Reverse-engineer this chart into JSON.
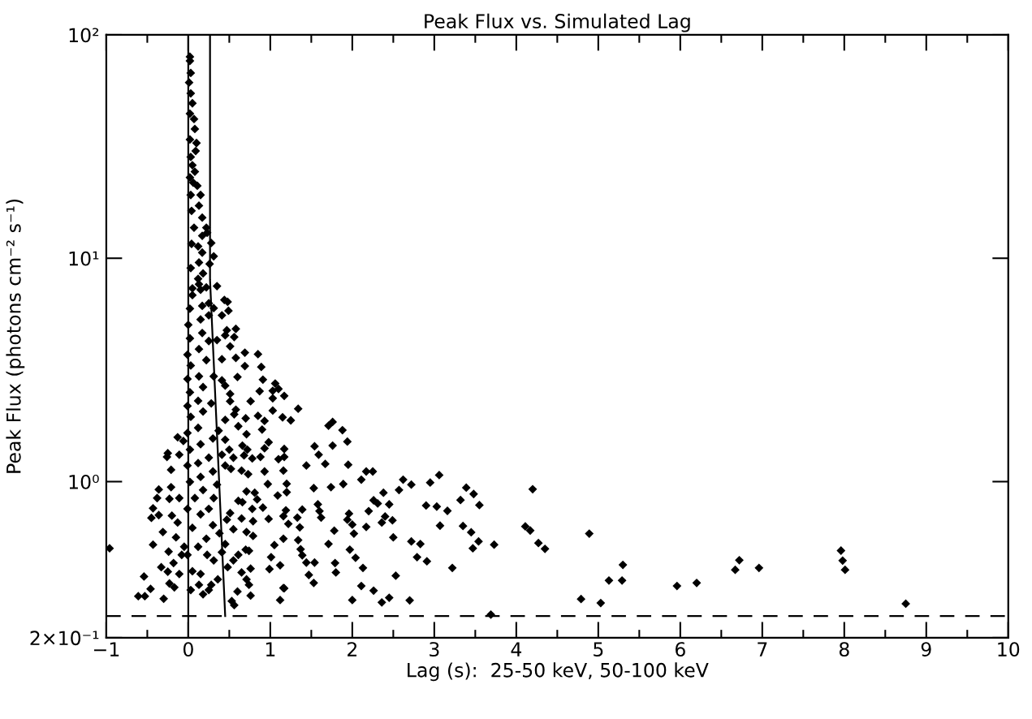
{
  "chart_data": {
    "type": "scatter",
    "title": "Peak Flux vs. Simulated Lag",
    "xlabel": "Lag (s):  25-50 keV, 50-100 keV",
    "ylabel": "Peak Flux (photons cm⁻² s⁻¹)",
    "log": "y",
    "xlim": [
      -1,
      10
    ],
    "ylim": [
      0.2,
      100
    ],
    "xticks": [
      {
        "value": -1,
        "label": "−1"
      },
      0,
      1,
      2,
      3,
      4,
      5,
      6,
      7,
      8,
      9,
      10
    ],
    "yticks": [
      {
        "value": 0.2,
        "label": "2×10⁻¹"
      },
      {
        "value": 1,
        "label": "10⁰"
      },
      {
        "value": 10,
        "label": "10¹"
      },
      {
        "value": 100,
        "label": "10²"
      }
    ],
    "grid": false,
    "legend": false,
    "ref_lines": [
      {
        "axis": "x",
        "value": 0,
        "color": "#000000",
        "line_style": "solid"
      },
      {
        "axis": "y",
        "value": 0.25,
        "color": "#000000",
        "line_style": "dashed"
      }
    ],
    "series": [
      {
        "color": "#000000",
        "marker": "diamond",
        "x": [
          3.69,
          3.73,
          4.2,
          4.11,
          4.17,
          4.27,
          4.35,
          4.79,
          4.89,
          5.03,
          5.13,
          5.29,
          5.3,
          5.96,
          6.2,
          6.67,
          6.72,
          6.96,
          7.96,
          7.98,
          8.01,
          8.75,
          -0.96,
          1.06,
          1.1,
          1.03,
          1.17,
          1.03,
          1.03,
          1.34,
          1.15,
          1.25,
          1.71,
          1.76,
          1.88,
          1.94,
          1.76,
          1.54,
          1.59,
          1.17,
          1.1,
          1.67,
          1.44,
          1.95,
          2.17,
          2.25,
          2.11,
          1.89,
          1.53,
          1.74,
          2.62,
          2.72,
          2.57,
          2.95,
          3.06,
          3.39,
          3.48,
          3.55,
          3.32,
          3.03,
          3.16,
          2.9,
          2.38,
          2.45,
          2.26,
          2.2,
          2.4,
          2.49,
          2.36,
          2.5,
          2.72,
          2.83,
          2.79,
          2.91,
          3.22,
          3.07,
          3.35,
          3.45,
          3.54,
          3.47,
          2.53,
          2.7,
          2.45,
          2.36,
          2.26,
          2.11,
          2.0,
          2.13,
          2.04,
          1.97,
          2.02,
          2.17,
          1.62,
          1.58,
          1.78,
          1.71,
          1.79,
          1.8,
          1.54,
          1.47,
          1.53,
          1.44,
          1.39,
          1.37,
          1.34,
          1.36,
          1.39,
          1.33,
          1.22,
          1.16,
          1.05,
          1.01,
          1.12,
          1.17,
          1.12,
          1.16,
          1.19,
          1.2,
          1.09,
          1.2,
          1.16,
          1.17,
          1.6,
          1.96,
          1.94,
          2.0,
          2.31,
          -0.61,
          -0.53,
          -0.54,
          -0.46,
          -0.3,
          -0.43,
          -0.45,
          -0.36,
          -0.43,
          -0.36,
          -0.38,
          -0.31,
          -0.33,
          -0.23,
          -0.17,
          -0.26,
          -0.25,
          -0.21,
          -0.13,
          -0.11,
          -0.21,
          -0.23,
          -0.2,
          -0.15,
          -0.24,
          -0.18,
          -0.25,
          -0.11,
          -0.08,
          -0.13,
          -0.06,
          0.02,
          0.02,
          0.03,
          0.01,
          0.03,
          0.05,
          0.02,
          0.07,
          0.08,
          0.02,
          0.1,
          0.09,
          0.03,
          0.05,
          0.08,
          0.02,
          0.06,
          0.11,
          0.15,
          0.03,
          0.13,
          0.04,
          0.17,
          0.07,
          0.22,
          0.17,
          0.23,
          0.28,
          0.04,
          0.12,
          0.31,
          0.17,
          0.26,
          0.13,
          0.03,
          0.18,
          0.12,
          0.13,
          0.35,
          0.05,
          0.22,
          0.44,
          0.48,
          0.49,
          0.41,
          0.31,
          0.58,
          0.47,
          0.56,
          0.45,
          0.35,
          0.51,
          0.69,
          0.85,
          0.58,
          0.41,
          0.69,
          0.89,
          0.6,
          0.91,
          0.41,
          0.45,
          0.51,
          0.87,
          0.76,
          0.51,
          0.58,
          0.7,
          0.85,
          0.93,
          0.56,
          0.45,
          0.61,
          0.37,
          0.71,
          0.9,
          0.98,
          0.93,
          0.45,
          0.5,
          0.66,
          0.72,
          0.78,
          0.88,
          0.68,
          0.55,
          0.41,
          0.65,
          0.73,
          0.52,
          0.45,
          0.93,
          0.97,
          0.71,
          0.81,
          0.61,
          0.66,
          0.84,
          0.78,
          0.91,
          0.98,
          0.79,
          0.65,
          0.51,
          0.47,
          0.55,
          0.71,
          0.79,
          0.7,
          0.61,
          0.74,
          0.55,
          0.65,
          0.48,
          0.76,
          0.99,
          1.16,
          0.71,
          0.74,
          0.6,
          0.76,
          0.53,
          0.56,
          0.36,
          0.28,
          0.25,
          0.18,
          0.13,
          0.03,
          0.05,
          0.15,
          0.23,
          0.31,
          0.41,
          0.45,
          0.38,
          0.3,
          0.22,
          0.12,
          -0.01,
          -0.05,
          0.05,
          0.15,
          0.25,
          -0.01,
          -0.11,
          0.08,
          0.31,
          0.18,
          0.35,
          0.02,
          0.15,
          0.3,
          -0.01,
          0.12,
          0.25,
          0.02,
          0.15,
          0.3,
          -0.01,
          0.12,
          0.03,
          0.18,
          -0.01,
          0.12,
          0.28,
          0.02,
          0.18,
          -0.01,
          0.13,
          0.31,
          0.03,
          0.22,
          -0.01,
          0.13,
          0.25,
          0.02,
          0.17,
          0.0,
          0.15,
          0.25,
          0.02,
          0.17,
          0.25,
          0.05,
          0.15
        ],
        "values": [
          0.254,
          0.522,
          0.925,
          0.63,
          0.604,
          0.531,
          0.5,
          0.298,
          0.585,
          0.286,
          0.361,
          0.361,
          0.424,
          0.341,
          0.352,
          0.403,
          0.445,
          0.411,
          0.491,
          0.443,
          0.403,
          0.284,
          0.503,
          2.75,
          2.6,
          2.55,
          2.42,
          2.36,
          2.08,
          2.12,
          1.94,
          1.88,
          1.78,
          1.85,
          1.7,
          1.51,
          1.45,
          1.44,
          1.32,
          1.4,
          1.26,
          1.2,
          1.18,
          1.19,
          1.11,
          1.11,
          1.02,
          0.975,
          0.935,
          0.944,
          1.02,
          0.97,
          0.917,
          0.99,
          1.07,
          0.94,
          0.88,
          0.785,
          0.827,
          0.773,
          0.74,
          0.782,
          0.892,
          0.791,
          0.825,
          0.738,
          0.698,
          0.671,
          0.656,
          0.563,
          0.54,
          0.526,
          0.459,
          0.44,
          0.411,
          0.635,
          0.633,
          0.593,
          0.54,
          0.503,
          0.379,
          0.294,
          0.302,
          0.288,
          0.325,
          0.341,
          0.295,
          0.411,
          0.456,
          0.496,
          0.585,
          0.627,
          0.69,
          0.791,
          0.603,
          0.526,
          0.432,
          0.392,
          0.434,
          0.382,
          0.352,
          0.434,
          0.468,
          0.498,
          0.547,
          0.624,
          0.75,
          0.69,
          0.647,
          0.555,
          0.52,
          0.459,
          0.422,
          0.333,
          0.295,
          0.7,
          0.744,
          0.897,
          0.867,
          0.978,
          1.12,
          1.29,
          0.738,
          0.719,
          0.675,
          0.642,
          0.798,
          0.307,
          0.307,
          0.376,
          0.331,
          0.299,
          0.522,
          0.688,
          0.708,
          0.76,
          0.922,
          0.844,
          0.595,
          0.414,
          0.35,
          0.336,
          1.29,
          1.34,
          1.13,
          1.58,
          1.32,
          0.944,
          0.837,
          0.704,
          0.563,
          0.486,
          0.432,
          0.395,
          0.386,
          0.47,
          0.656,
          1.52,
          79.8,
          76.5,
          67.5,
          61.2,
          54.7,
          49.4,
          44.4,
          42.0,
          37.9,
          34.0,
          32.8,
          30.2,
          28.4,
          26.1,
          24.4,
          23.0,
          21.8,
          21.1,
          19.2,
          19.2,
          17.2,
          16.3,
          15.2,
          13.7,
          13.7,
          12.6,
          13.0,
          11.7,
          11.6,
          11.3,
          10.2,
          10.6,
          9.43,
          9.57,
          9.04,
          8.55,
          8.09,
          7.65,
          7.5,
          7.33,
          7.4,
          6.51,
          6.38,
          5.82,
          5.55,
          5.98,
          4.83,
          4.76,
          4.44,
          4.52,
          4.3,
          4.03,
          3.78,
          3.72,
          3.58,
          3.53,
          3.29,
          3.26,
          2.94,
          2.86,
          2.84,
          2.69,
          2.47,
          2.54,
          2.29,
          2.29,
          2.1,
          1.92,
          1.97,
          1.87,
          2.0,
          1.89,
          1.77,
          1.69,
          1.63,
          1.71,
          1.5,
          1.41,
          1.54,
          1.39,
          1.45,
          1.39,
          1.27,
          1.29,
          1.31,
          1.28,
          1.32,
          1.12,
          1.08,
          1.14,
          1.18,
          1.11,
          0.975,
          0.904,
          0.892,
          0.82,
          0.809,
          0.832,
          0.755,
          0.765,
          0.681,
          0.665,
          0.684,
          0.723,
          0.675,
          0.612,
          0.595,
          0.571,
          0.496,
          0.47,
          0.49,
          0.444,
          0.392,
          0.414,
          0.408,
          0.406,
          0.334,
          0.365,
          0.345,
          0.322,
          0.309,
          0.292,
          0.28,
          0.365,
          0.345,
          0.327,
          0.313,
          0.345,
          0.327,
          0.397,
          0.386,
          0.47,
          0.444,
          0.483,
          0.525,
          0.587,
          0.638,
          0.555,
          0.511,
          0.47,
          0.511,
          0.621,
          0.714,
          0.755,
          0.755,
          0.844,
          0.844,
          0.844,
          0.917,
          0.97,
          0.997,
          1.05,
          1.11,
          1.18,
          1.21,
          1.28,
          1.39,
          1.47,
          1.56,
          1.65,
          1.74,
          1.95,
          2.06,
          2.18,
          2.3,
          2.24,
          2.51,
          2.65,
          2.88,
          2.96,
          2.96,
          3.31,
          3.5,
          3.7,
          3.92,
          4.26,
          4.38,
          4.63,
          5.03,
          5.32,
          5.55,
          5.95,
          6.12,
          6.29,
          6.84,
          7.23
        ]
      },
      {
        "type": "line",
        "color": "#000000",
        "line_style": "solid",
        "marker": "none",
        "x": [
          0.265,
          0.265,
          0.45
        ],
        "values": [
          100,
          8,
          0.25
        ]
      }
    ]
  }
}
